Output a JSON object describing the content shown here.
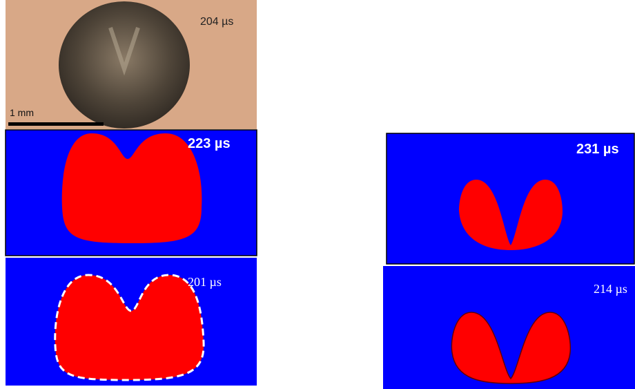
{
  "panels": [
    {
      "time": "204 µs",
      "scale_bar": "1 mm"
    },
    {
      "time": "223 µs"
    },
    {
      "time": "201 µs"
    },
    {
      "time": "231 µs"
    },
    {
      "time": "214 µs"
    }
  ]
}
